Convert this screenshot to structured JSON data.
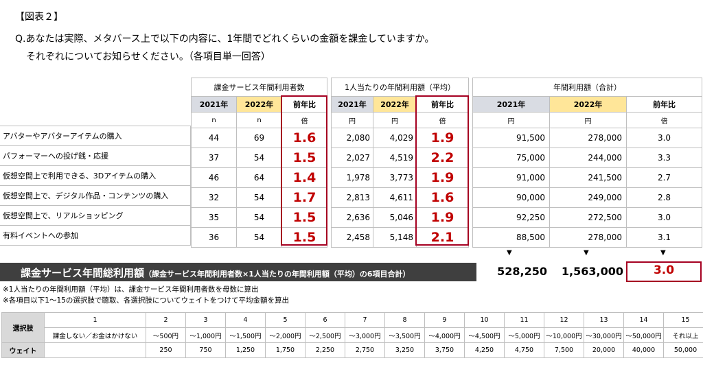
{
  "figure_label": "【図表２】",
  "question_line1": "Q.あなたは実際、メタバース上で以下の内容に、1年間でどれくらいの金額を課金していますか。",
  "question_line2": "それぞれについてお知らせください。（各項目単一回答）",
  "groups": {
    "users": "課金サービス年間利用者数",
    "avg": "1人当たりの年間利用額（平均）",
    "total": "年間利用額（合計）"
  },
  "years": {
    "y2021": "2021年",
    "y2022": "2022年",
    "ratio": "前年比"
  },
  "units": {
    "n": "n",
    "bai": "倍",
    "yen": "円"
  },
  "rows": [
    {
      "label": "アバターやアバターアイテムの購入",
      "u21": "44",
      "u22": "69",
      "ur": "1.6",
      "a21": "2,080",
      "a22": "4,029",
      "ar": "1.9",
      "t21": "91,500",
      "t22": "278,000",
      "tr": "3.0"
    },
    {
      "label": "パフォーマーへの投げ銭・応援",
      "u21": "37",
      "u22": "54",
      "ur": "1.5",
      "a21": "2,027",
      "a22": "4,519",
      "ar": "2.2",
      "t21": "75,000",
      "t22": "244,000",
      "tr": "3.3"
    },
    {
      "label": "仮想空間上で利用できる、3Dアイテムの購入",
      "u21": "46",
      "u22": "64",
      "ur": "1.4",
      "a21": "1,978",
      "a22": "3,773",
      "ar": "1.9",
      "t21": "91,000",
      "t22": "241,500",
      "tr": "2.7"
    },
    {
      "label": "仮想空間上で、デジタル作品・コンテンツの購入",
      "u21": "32",
      "u22": "54",
      "ur": "1.7",
      "a21": "2,813",
      "a22": "4,611",
      "ar": "1.6",
      "t21": "90,000",
      "t22": "249,000",
      "tr": "2.8"
    },
    {
      "label": "仮想空間上で、リアルショッピング",
      "u21": "35",
      "u22": "54",
      "ur": "1.5",
      "a21": "2,636",
      "a22": "5,046",
      "ar": "1.9",
      "t21": "92,250",
      "t22": "272,500",
      "tr": "3.0"
    },
    {
      "label": "有料イベントへの参加",
      "u21": "36",
      "u22": "54",
      "ur": "1.5",
      "a21": "2,458",
      "a22": "5,148",
      "ar": "2.1",
      "t21": "88,500",
      "t22": "278,000",
      "tr": "3.1"
    }
  ],
  "arrow": "▼",
  "total": {
    "label_main": "課金サービス年間総利用額",
    "label_sub": "（課金サービス年間利用者数×1人当たりの年間利用額（平均）の6項目合計）",
    "v2021": "528,250",
    "v2022": "1,563,000",
    "ratio": "3.0"
  },
  "notes": [
    "※1人当たりの年間利用額（平均）は、課金サービス年間利用者数を母数に算出",
    "※各項目以下1～15の選択肢で聴取、各選択肢についてウェイトをつけて平均金額を算出"
  ],
  "scale": {
    "choice_label": "選択肢",
    "weight_label": "ウェイト",
    "numbers": [
      "1",
      "2",
      "3",
      "4",
      "5",
      "6",
      "7",
      "8",
      "9",
      "10",
      "11",
      "12",
      "13",
      "14",
      "15"
    ],
    "ranges": [
      "課金しない／お金はかけない",
      "～500円",
      "～1,000円",
      "～1,500円",
      "～2,000円",
      "～2,500円",
      "～3,000円",
      "～3,500円",
      "～4,000円",
      "～4,500円",
      "～5,000円",
      "～10,000円",
      "～30,000円",
      "～50,000円",
      "それ以上"
    ],
    "weights": [
      "",
      "250",
      "750",
      "1,250",
      "1,750",
      "2,250",
      "2,750",
      "3,250",
      "3,750",
      "4,250",
      "4,750",
      "7,500",
      "20,000",
      "40,000",
      "50,000"
    ]
  },
  "colors": {
    "dark_red": "#a50021",
    "accent_red": "#c00000",
    "header_gray": "#d9dce3",
    "header_yellow": "#ffe699",
    "bar_dark": "#3f3f3f"
  }
}
